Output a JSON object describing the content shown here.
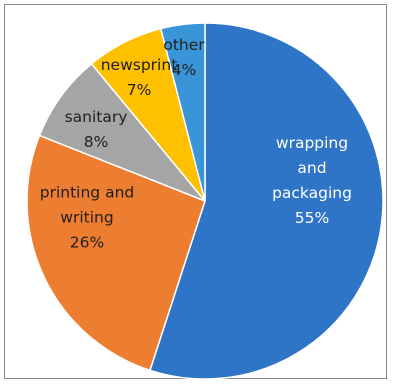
{
  "chart_data": {
    "type": "pie",
    "title": "",
    "slices": [
      {
        "label_lines": [
          "wrapping",
          "and",
          "packaging"
        ],
        "percent_label": "55%",
        "value": 55,
        "color": "#2e75c7"
      },
      {
        "label_lines": [
          "printing and",
          "writing"
        ],
        "percent_label": "26%",
        "value": 26,
        "color": "#ed7d31"
      },
      {
        "label_lines": [
          "sanitary"
        ],
        "percent_label": "8%",
        "value": 8,
        "color": "#a5a5a5"
      },
      {
        "label_lines": [
          "newsprint"
        ],
        "percent_label": "7%",
        "value": 7,
        "color": "#ffc000"
      },
      {
        "label_lines": [
          "other"
        ],
        "percent_label": "4%",
        "value": 4,
        "color": "#3a95d8"
      }
    ],
    "legend": "none",
    "data_labels": "inside"
  }
}
